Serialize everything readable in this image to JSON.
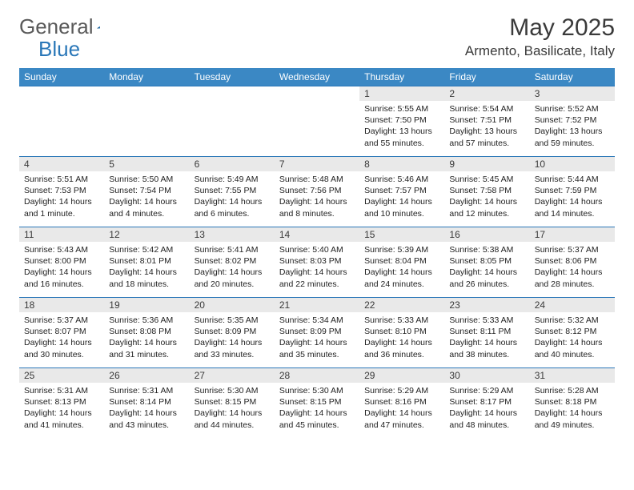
{
  "logo": {
    "text_a": "General",
    "text_b": "Blue"
  },
  "title": "May 2025",
  "location": "Armento, Basilicate, Italy",
  "colors": {
    "header_bg": "#3b88c4",
    "header_text": "#ffffff",
    "daynum_bg": "#e9e9e9",
    "rule": "#2a77b8",
    "logo_gray": "#5a5a5a",
    "logo_blue": "#2a77b8",
    "body_text": "#222222"
  },
  "day_headers": [
    "Sunday",
    "Monday",
    "Tuesday",
    "Wednesday",
    "Thursday",
    "Friday",
    "Saturday"
  ],
  "weeks": [
    [
      {
        "n": "",
        "sr": "",
        "ss": "",
        "dl": ""
      },
      {
        "n": "",
        "sr": "",
        "ss": "",
        "dl": ""
      },
      {
        "n": "",
        "sr": "",
        "ss": "",
        "dl": ""
      },
      {
        "n": "",
        "sr": "",
        "ss": "",
        "dl": ""
      },
      {
        "n": "1",
        "sr": "Sunrise: 5:55 AM",
        "ss": "Sunset: 7:50 PM",
        "dl": "Daylight: 13 hours and 55 minutes."
      },
      {
        "n": "2",
        "sr": "Sunrise: 5:54 AM",
        "ss": "Sunset: 7:51 PM",
        "dl": "Daylight: 13 hours and 57 minutes."
      },
      {
        "n": "3",
        "sr": "Sunrise: 5:52 AM",
        "ss": "Sunset: 7:52 PM",
        "dl": "Daylight: 13 hours and 59 minutes."
      }
    ],
    [
      {
        "n": "4",
        "sr": "Sunrise: 5:51 AM",
        "ss": "Sunset: 7:53 PM",
        "dl": "Daylight: 14 hours and 1 minute."
      },
      {
        "n": "5",
        "sr": "Sunrise: 5:50 AM",
        "ss": "Sunset: 7:54 PM",
        "dl": "Daylight: 14 hours and 4 minutes."
      },
      {
        "n": "6",
        "sr": "Sunrise: 5:49 AM",
        "ss": "Sunset: 7:55 PM",
        "dl": "Daylight: 14 hours and 6 minutes."
      },
      {
        "n": "7",
        "sr": "Sunrise: 5:48 AM",
        "ss": "Sunset: 7:56 PM",
        "dl": "Daylight: 14 hours and 8 minutes."
      },
      {
        "n": "8",
        "sr": "Sunrise: 5:46 AM",
        "ss": "Sunset: 7:57 PM",
        "dl": "Daylight: 14 hours and 10 minutes."
      },
      {
        "n": "9",
        "sr": "Sunrise: 5:45 AM",
        "ss": "Sunset: 7:58 PM",
        "dl": "Daylight: 14 hours and 12 minutes."
      },
      {
        "n": "10",
        "sr": "Sunrise: 5:44 AM",
        "ss": "Sunset: 7:59 PM",
        "dl": "Daylight: 14 hours and 14 minutes."
      }
    ],
    [
      {
        "n": "11",
        "sr": "Sunrise: 5:43 AM",
        "ss": "Sunset: 8:00 PM",
        "dl": "Daylight: 14 hours and 16 minutes."
      },
      {
        "n": "12",
        "sr": "Sunrise: 5:42 AM",
        "ss": "Sunset: 8:01 PM",
        "dl": "Daylight: 14 hours and 18 minutes."
      },
      {
        "n": "13",
        "sr": "Sunrise: 5:41 AM",
        "ss": "Sunset: 8:02 PM",
        "dl": "Daylight: 14 hours and 20 minutes."
      },
      {
        "n": "14",
        "sr": "Sunrise: 5:40 AM",
        "ss": "Sunset: 8:03 PM",
        "dl": "Daylight: 14 hours and 22 minutes."
      },
      {
        "n": "15",
        "sr": "Sunrise: 5:39 AM",
        "ss": "Sunset: 8:04 PM",
        "dl": "Daylight: 14 hours and 24 minutes."
      },
      {
        "n": "16",
        "sr": "Sunrise: 5:38 AM",
        "ss": "Sunset: 8:05 PM",
        "dl": "Daylight: 14 hours and 26 minutes."
      },
      {
        "n": "17",
        "sr": "Sunrise: 5:37 AM",
        "ss": "Sunset: 8:06 PM",
        "dl": "Daylight: 14 hours and 28 minutes."
      }
    ],
    [
      {
        "n": "18",
        "sr": "Sunrise: 5:37 AM",
        "ss": "Sunset: 8:07 PM",
        "dl": "Daylight: 14 hours and 30 minutes."
      },
      {
        "n": "19",
        "sr": "Sunrise: 5:36 AM",
        "ss": "Sunset: 8:08 PM",
        "dl": "Daylight: 14 hours and 31 minutes."
      },
      {
        "n": "20",
        "sr": "Sunrise: 5:35 AM",
        "ss": "Sunset: 8:09 PM",
        "dl": "Daylight: 14 hours and 33 minutes."
      },
      {
        "n": "21",
        "sr": "Sunrise: 5:34 AM",
        "ss": "Sunset: 8:09 PM",
        "dl": "Daylight: 14 hours and 35 minutes."
      },
      {
        "n": "22",
        "sr": "Sunrise: 5:33 AM",
        "ss": "Sunset: 8:10 PM",
        "dl": "Daylight: 14 hours and 36 minutes."
      },
      {
        "n": "23",
        "sr": "Sunrise: 5:33 AM",
        "ss": "Sunset: 8:11 PM",
        "dl": "Daylight: 14 hours and 38 minutes."
      },
      {
        "n": "24",
        "sr": "Sunrise: 5:32 AM",
        "ss": "Sunset: 8:12 PM",
        "dl": "Daylight: 14 hours and 40 minutes."
      }
    ],
    [
      {
        "n": "25",
        "sr": "Sunrise: 5:31 AM",
        "ss": "Sunset: 8:13 PM",
        "dl": "Daylight: 14 hours and 41 minutes."
      },
      {
        "n": "26",
        "sr": "Sunrise: 5:31 AM",
        "ss": "Sunset: 8:14 PM",
        "dl": "Daylight: 14 hours and 43 minutes."
      },
      {
        "n": "27",
        "sr": "Sunrise: 5:30 AM",
        "ss": "Sunset: 8:15 PM",
        "dl": "Daylight: 14 hours and 44 minutes."
      },
      {
        "n": "28",
        "sr": "Sunrise: 5:30 AM",
        "ss": "Sunset: 8:15 PM",
        "dl": "Daylight: 14 hours and 45 minutes."
      },
      {
        "n": "29",
        "sr": "Sunrise: 5:29 AM",
        "ss": "Sunset: 8:16 PM",
        "dl": "Daylight: 14 hours and 47 minutes."
      },
      {
        "n": "30",
        "sr": "Sunrise: 5:29 AM",
        "ss": "Sunset: 8:17 PM",
        "dl": "Daylight: 14 hours and 48 minutes."
      },
      {
        "n": "31",
        "sr": "Sunrise: 5:28 AM",
        "ss": "Sunset: 8:18 PM",
        "dl": "Daylight: 14 hours and 49 minutes."
      }
    ]
  ]
}
